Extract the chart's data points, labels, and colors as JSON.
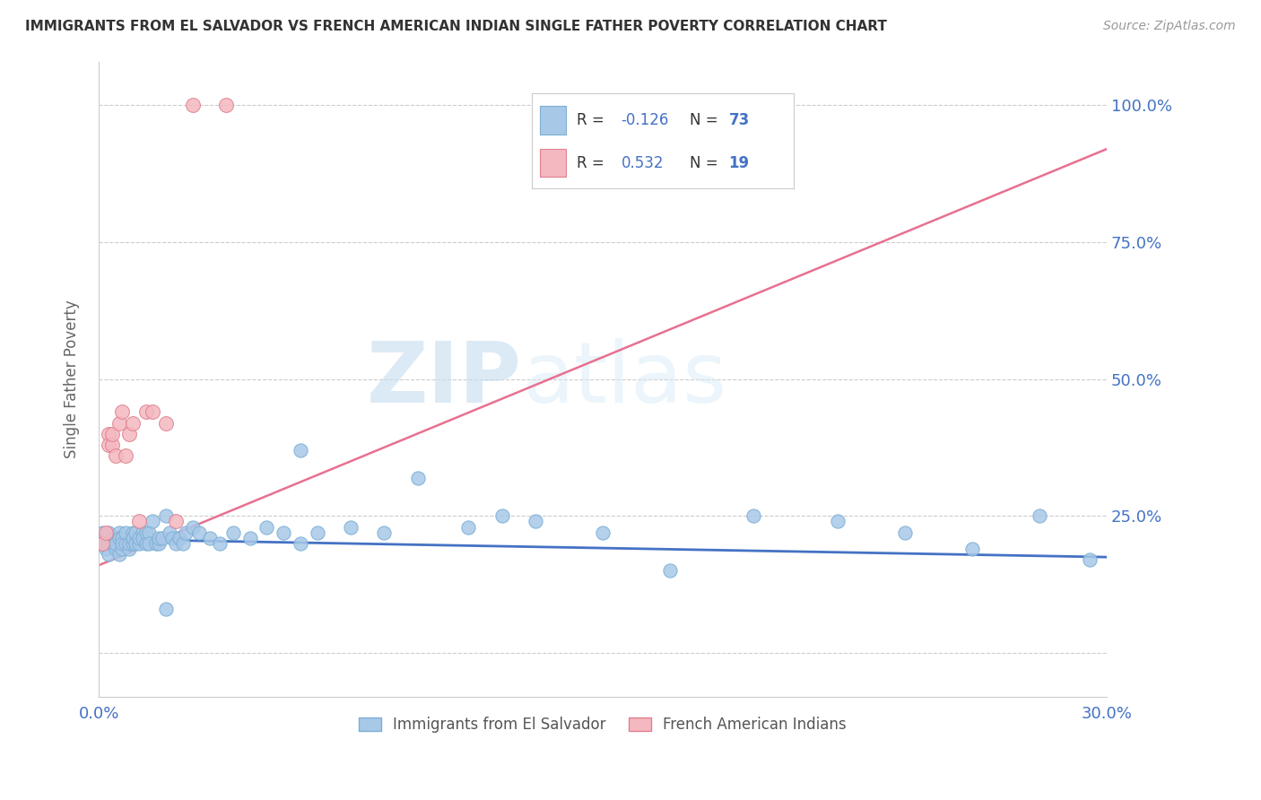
{
  "title": "IMMIGRANTS FROM EL SALVADOR VS FRENCH AMERICAN INDIAN SINGLE FATHER POVERTY CORRELATION CHART",
  "source": "Source: ZipAtlas.com",
  "ylabel": "Single Father Poverty",
  "right_yticks": [
    "100.0%",
    "75.0%",
    "50.0%",
    "25.0%"
  ],
  "right_ytick_vals": [
    1.0,
    0.75,
    0.5,
    0.25
  ],
  "legend1_r": "-0.126",
  "legend1_n": "73",
  "legend2_r": "0.532",
  "legend2_n": "19",
  "legend1_label": "Immigrants from El Salvador",
  "legend2_label": "French American Indians",
  "blue_color": "#a8c8e8",
  "blue_edge_color": "#7bafd4",
  "pink_color": "#f4b8c0",
  "pink_edge_color": "#e08090",
  "blue_line_color": "#4472c4",
  "pink_line_color": "#e87090",
  "watermark_zip": "ZIP",
  "watermark_atlas": "atlas",
  "xlim": [
    0.0,
    0.3
  ],
  "ylim": [
    -0.08,
    1.08
  ],
  "blue_scatter_x": [
    0.001,
    0.001,
    0.002,
    0.002,
    0.003,
    0.003,
    0.003,
    0.004,
    0.004,
    0.005,
    0.005,
    0.005,
    0.006,
    0.006,
    0.006,
    0.007,
    0.007,
    0.007,
    0.008,
    0.008,
    0.009,
    0.009,
    0.01,
    0.01,
    0.01,
    0.011,
    0.011,
    0.012,
    0.012,
    0.013,
    0.013,
    0.014,
    0.014,
    0.015,
    0.015,
    0.016,
    0.017,
    0.018,
    0.018,
    0.019,
    0.02,
    0.021,
    0.022,
    0.023,
    0.024,
    0.025,
    0.026,
    0.028,
    0.03,
    0.033,
    0.036,
    0.04,
    0.045,
    0.05,
    0.055,
    0.06,
    0.065,
    0.075,
    0.085,
    0.095,
    0.11,
    0.13,
    0.15,
    0.17,
    0.195,
    0.22,
    0.24,
    0.26,
    0.28,
    0.295,
    0.02,
    0.06,
    0.12
  ],
  "blue_scatter_y": [
    0.2,
    0.22,
    0.19,
    0.21,
    0.2,
    0.18,
    0.22,
    0.2,
    0.21,
    0.19,
    0.21,
    0.2,
    0.18,
    0.22,
    0.21,
    0.19,
    0.21,
    0.2,
    0.2,
    0.22,
    0.19,
    0.2,
    0.2,
    0.22,
    0.21,
    0.2,
    0.22,
    0.2,
    0.21,
    0.22,
    0.21,
    0.2,
    0.22,
    0.22,
    0.2,
    0.24,
    0.2,
    0.2,
    0.21,
    0.21,
    0.25,
    0.22,
    0.21,
    0.2,
    0.21,
    0.2,
    0.22,
    0.23,
    0.22,
    0.21,
    0.2,
    0.22,
    0.21,
    0.23,
    0.22,
    0.2,
    0.22,
    0.23,
    0.22,
    0.32,
    0.23,
    0.24,
    0.22,
    0.15,
    0.25,
    0.24,
    0.22,
    0.19,
    0.25,
    0.17,
    0.08,
    0.37,
    0.25
  ],
  "pink_scatter_x": [
    0.001,
    0.002,
    0.003,
    0.003,
    0.004,
    0.004,
    0.005,
    0.006,
    0.007,
    0.008,
    0.009,
    0.01,
    0.012,
    0.014,
    0.016,
    0.02,
    0.023,
    0.028,
    0.038
  ],
  "pink_scatter_y": [
    0.2,
    0.22,
    0.4,
    0.38,
    0.38,
    0.4,
    0.36,
    0.42,
    0.44,
    0.36,
    0.4,
    0.42,
    0.24,
    0.44,
    0.44,
    0.42,
    0.24,
    1.0,
    1.0
  ],
  "blue_trend_x": [
    0.0,
    0.3
  ],
  "blue_trend_y": [
    0.208,
    0.175
  ],
  "pink_trend_x": [
    0.0,
    0.3
  ],
  "pink_trend_y": [
    0.16,
    0.92
  ]
}
